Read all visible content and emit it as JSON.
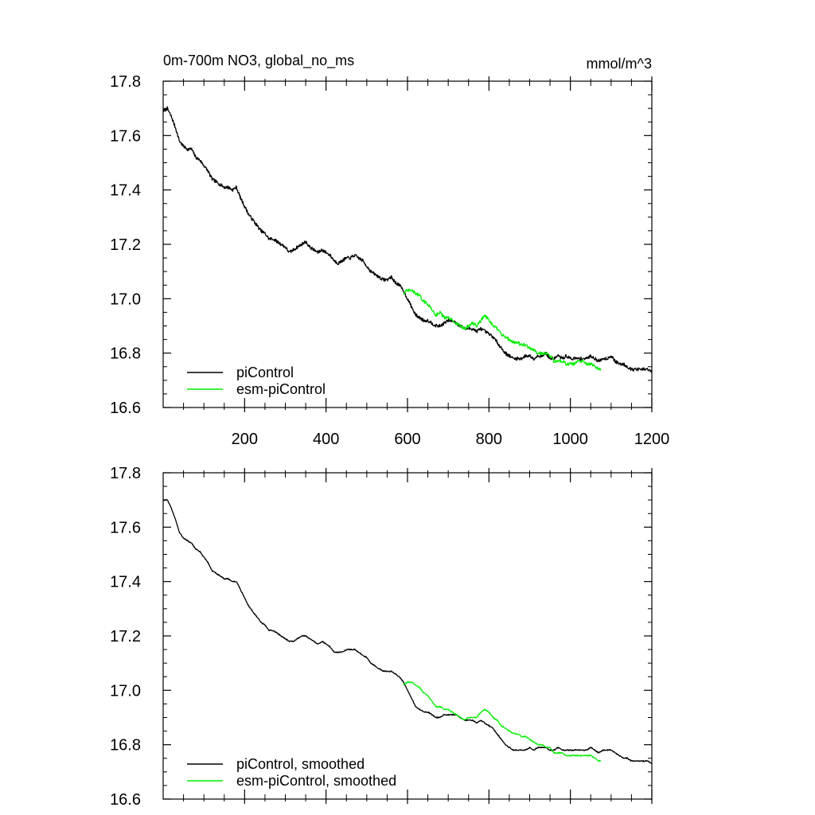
{
  "chart_data": [
    {
      "type": "line",
      "title": "0m-700m NO3, global_no_ms",
      "units": "mmol/m^3",
      "xlabel": "",
      "ylabel": "",
      "xlim": [
        0,
        1200
      ],
      "ylim": [
        16.6,
        17.8
      ],
      "xticks": [
        200,
        400,
        600,
        800,
        1000,
        1200
      ],
      "xtick_labels": [
        "200",
        "400",
        "600",
        "800",
        "1000",
        "1200"
      ],
      "yticks": [
        16.6,
        16.8,
        17.0,
        17.2,
        17.4,
        17.6,
        17.8
      ],
      "ytick_labels": [
        "16.6",
        "16.8",
        "17.0",
        "17.2",
        "17.4",
        "17.6",
        "17.8"
      ],
      "grid": false,
      "legend_position": "bottom-left",
      "series": [
        {
          "name": "piControl",
          "color": "#000000",
          "noise": 0.006,
          "x": [
            1,
            10,
            20,
            30,
            40,
            50,
            60,
            70,
            80,
            90,
            100,
            110,
            120,
            130,
            140,
            150,
            160,
            170,
            180,
            190,
            200,
            210,
            220,
            230,
            240,
            250,
            260,
            270,
            280,
            290,
            300,
            310,
            320,
            330,
            340,
            350,
            360,
            370,
            380,
            390,
            400,
            410,
            420,
            430,
            440,
            450,
            460,
            470,
            480,
            490,
            500,
            510,
            520,
            530,
            540,
            550,
            560,
            570,
            580,
            590,
            600,
            610,
            620,
            630,
            640,
            650,
            660,
            670,
            680,
            690,
            700,
            710,
            720,
            730,
            740,
            750,
            760,
            770,
            780,
            790,
            800,
            810,
            820,
            830,
            840,
            850,
            860,
            870,
            880,
            890,
            900,
            910,
            920,
            930,
            940,
            950,
            960,
            970,
            980,
            990,
            1000,
            1010,
            1020,
            1030,
            1040,
            1050,
            1060,
            1070,
            1080,
            1090,
            1100,
            1110,
            1120,
            1130,
            1140,
            1150,
            1160,
            1170,
            1180,
            1190,
            1200
          ],
          "values": [
            17.69,
            17.7,
            17.67,
            17.63,
            17.58,
            17.56,
            17.55,
            17.55,
            17.52,
            17.51,
            17.49,
            17.47,
            17.44,
            17.43,
            17.42,
            17.41,
            17.41,
            17.4,
            17.41,
            17.37,
            17.34,
            17.31,
            17.29,
            17.27,
            17.25,
            17.24,
            17.22,
            17.22,
            17.21,
            17.2,
            17.19,
            17.17,
            17.18,
            17.19,
            17.2,
            17.21,
            17.19,
            17.18,
            17.17,
            17.18,
            17.17,
            17.16,
            17.14,
            17.13,
            17.14,
            17.15,
            17.15,
            17.16,
            17.15,
            17.14,
            17.12,
            17.1,
            17.09,
            17.08,
            17.07,
            17.07,
            17.08,
            17.06,
            17.05,
            17.03,
            17.0,
            16.97,
            16.94,
            16.93,
            16.92,
            16.92,
            16.91,
            16.9,
            16.9,
            16.91,
            16.92,
            16.92,
            16.91,
            16.9,
            16.89,
            16.89,
            16.89,
            16.88,
            16.89,
            16.88,
            16.87,
            16.86,
            16.84,
            16.82,
            16.8,
            16.79,
            16.78,
            16.78,
            16.78,
            16.79,
            16.79,
            16.78,
            16.79,
            16.79,
            16.8,
            16.78,
            16.78,
            16.79,
            16.78,
            16.79,
            16.78,
            16.78,
            16.78,
            16.78,
            16.78,
            16.79,
            16.78,
            16.77,
            16.78,
            16.78,
            16.79,
            16.77,
            16.76,
            16.76,
            16.75,
            16.74,
            16.74,
            16.74,
            16.74,
            16.74,
            16.73
          ]
        },
        {
          "name": "esm-piControl",
          "color": "#00ee00",
          "noise": 0.006,
          "x": [
            590,
            600,
            610,
            620,
            630,
            640,
            650,
            660,
            670,
            680,
            690,
            700,
            710,
            720,
            730,
            740,
            750,
            760,
            770,
            780,
            790,
            800,
            810,
            820,
            830,
            840,
            850,
            860,
            870,
            880,
            890,
            900,
            910,
            920,
            930,
            940,
            950,
            960,
            970,
            980,
            990,
            1000,
            1010,
            1020,
            1030,
            1040,
            1050,
            1060,
            1070,
            1075
          ],
          "values": [
            17.02,
            17.03,
            17.03,
            17.02,
            17.01,
            16.99,
            16.98,
            16.96,
            16.94,
            16.95,
            16.93,
            16.93,
            16.92,
            16.91,
            16.9,
            16.89,
            16.9,
            16.91,
            16.9,
            16.92,
            16.94,
            16.92,
            16.9,
            16.89,
            16.87,
            16.86,
            16.85,
            16.84,
            16.84,
            16.83,
            16.83,
            16.82,
            16.81,
            16.8,
            16.8,
            16.8,
            16.79,
            16.77,
            16.77,
            16.77,
            16.76,
            16.76,
            16.76,
            16.77,
            16.77,
            16.76,
            16.76,
            16.75,
            16.74,
            16.74
          ]
        }
      ]
    },
    {
      "type": "line",
      "title": "",
      "units": "",
      "xlabel": "",
      "ylabel": "",
      "xlim": [
        0,
        1200
      ],
      "ylim": [
        16.6,
        17.8
      ],
      "xticks": [
        200,
        400,
        600,
        800,
        1000,
        1200
      ],
      "xtick_labels": [],
      "yticks": [
        16.6,
        16.8,
        17.0,
        17.2,
        17.4,
        17.6,
        17.8
      ],
      "ytick_labels": [
        "16.6",
        "16.8",
        "17.0",
        "17.2",
        "17.4",
        "17.6",
        "17.8"
      ],
      "grid": false,
      "legend_position": "bottom-left",
      "series": [
        {
          "name": "piControl, smoothed",
          "color": "#000000",
          "noise": 0.002,
          "x": [
            1,
            10,
            20,
            30,
            40,
            50,
            60,
            70,
            80,
            90,
            100,
            110,
            120,
            130,
            140,
            150,
            160,
            170,
            180,
            190,
            200,
            210,
            220,
            230,
            240,
            250,
            260,
            270,
            280,
            290,
            300,
            310,
            320,
            330,
            340,
            350,
            360,
            370,
            380,
            390,
            400,
            410,
            420,
            430,
            440,
            450,
            460,
            470,
            480,
            490,
            500,
            510,
            520,
            530,
            540,
            550,
            560,
            570,
            580,
            590,
            600,
            610,
            620,
            630,
            640,
            650,
            660,
            670,
            680,
            690,
            700,
            710,
            720,
            730,
            740,
            750,
            760,
            770,
            780,
            790,
            800,
            810,
            820,
            830,
            840,
            850,
            860,
            870,
            880,
            890,
            900,
            910,
            920,
            930,
            940,
            950,
            960,
            970,
            980,
            990,
            1000,
            1010,
            1020,
            1030,
            1040,
            1050,
            1060,
            1070,
            1080,
            1090,
            1100,
            1110,
            1120,
            1130,
            1140,
            1150,
            1160,
            1170,
            1180,
            1190,
            1200
          ],
          "values": [
            17.7,
            17.7,
            17.67,
            17.63,
            17.58,
            17.56,
            17.55,
            17.54,
            17.52,
            17.51,
            17.49,
            17.47,
            17.44,
            17.43,
            17.42,
            17.41,
            17.41,
            17.4,
            17.4,
            17.37,
            17.34,
            17.31,
            17.29,
            17.27,
            17.25,
            17.24,
            17.22,
            17.22,
            17.21,
            17.2,
            17.19,
            17.18,
            17.18,
            17.19,
            17.2,
            17.2,
            17.19,
            17.18,
            17.17,
            17.18,
            17.17,
            17.16,
            17.14,
            17.14,
            17.14,
            17.15,
            17.15,
            17.15,
            17.14,
            17.13,
            17.12,
            17.1,
            17.09,
            17.08,
            17.07,
            17.07,
            17.07,
            17.06,
            17.05,
            17.03,
            17.0,
            16.97,
            16.94,
            16.93,
            16.92,
            16.92,
            16.91,
            16.9,
            16.9,
            16.91,
            16.91,
            16.91,
            16.91,
            16.9,
            16.89,
            16.89,
            16.89,
            16.88,
            16.89,
            16.88,
            16.87,
            16.86,
            16.84,
            16.82,
            16.8,
            16.79,
            16.78,
            16.78,
            16.78,
            16.78,
            16.79,
            16.78,
            16.79,
            16.79,
            16.79,
            16.78,
            16.78,
            16.79,
            16.78,
            16.78,
            16.78,
            16.78,
            16.78,
            16.78,
            16.78,
            16.79,
            16.78,
            16.77,
            16.78,
            16.78,
            16.78,
            16.77,
            16.76,
            16.75,
            16.75,
            16.74,
            16.74,
            16.74,
            16.74,
            16.74,
            16.73
          ]
        },
        {
          "name": "esm-piControl, smoothed",
          "color": "#00ee00",
          "noise": 0.002,
          "x": [
            590,
            600,
            610,
            620,
            630,
            640,
            650,
            660,
            670,
            680,
            690,
            700,
            710,
            720,
            730,
            740,
            750,
            760,
            770,
            780,
            790,
            800,
            810,
            820,
            830,
            840,
            850,
            860,
            870,
            880,
            890,
            900,
            910,
            920,
            930,
            940,
            950,
            960,
            970,
            980,
            990,
            1000,
            1010,
            1020,
            1030,
            1040,
            1050,
            1060,
            1070,
            1075
          ],
          "values": [
            17.02,
            17.03,
            17.03,
            17.02,
            17.01,
            16.99,
            16.98,
            16.96,
            16.94,
            16.94,
            16.93,
            16.93,
            16.92,
            16.91,
            16.9,
            16.89,
            16.9,
            16.9,
            16.9,
            16.92,
            16.93,
            16.92,
            16.9,
            16.89,
            16.87,
            16.86,
            16.85,
            16.84,
            16.84,
            16.83,
            16.83,
            16.82,
            16.81,
            16.8,
            16.8,
            16.79,
            16.79,
            16.77,
            16.77,
            16.77,
            16.76,
            16.76,
            16.76,
            16.76,
            16.76,
            16.76,
            16.76,
            16.75,
            16.74,
            16.74
          ]
        }
      ]
    }
  ]
}
